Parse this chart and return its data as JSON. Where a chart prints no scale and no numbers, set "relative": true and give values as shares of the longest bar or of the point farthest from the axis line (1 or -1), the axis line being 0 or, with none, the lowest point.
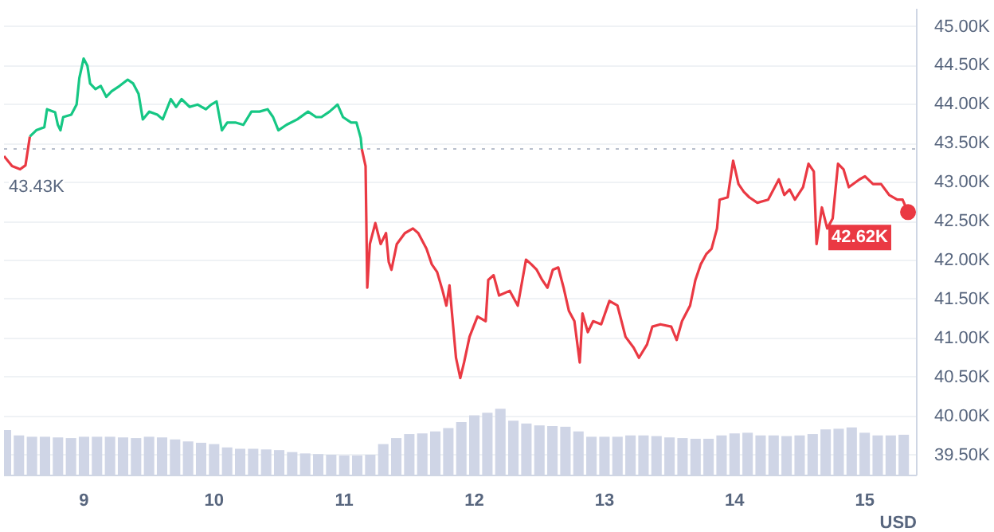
{
  "chart_data": [
    {
      "type": "line",
      "xlim": [
        8.385,
        15.4
      ],
      "ylim": [
        39.24,
        45.23
      ],
      "xticks": [
        9,
        10,
        11,
        12,
        13,
        14,
        15
      ],
      "yticks": [
        {
          "value": 39.5,
          "label": "39.50K"
        },
        {
          "value": 40,
          "label": "40.00K"
        },
        {
          "value": 40.5,
          "label": "40.50K"
        },
        {
          "value": 41,
          "label": "41.00K"
        },
        {
          "value": 41.5,
          "label": "41.50K"
        },
        {
          "value": 42,
          "label": "42.00K"
        },
        {
          "value": 42.5,
          "label": "42.50K"
        },
        {
          "value": 43,
          "label": "43.00K"
        },
        {
          "value": 43.5,
          "label": "43.50K"
        },
        {
          "value": 44,
          "label": "44.00K"
        },
        {
          "value": 44.5,
          "label": "44.50K"
        },
        {
          "value": 45,
          "label": "45.00K"
        }
      ],
      "grid": "y",
      "ref_lines": [
        {
          "axis": "y",
          "value": 43.43,
          "label": "43.43K",
          "line_style": "dotted",
          "color": "#b8bfcc"
        }
      ],
      "annotations": [
        {
          "text": "42.62K",
          "x": 15.333,
          "y": 42.62
        },
        "USD"
      ],
      "series": [
        {
          "color": "#ea3943",
          "x": [
            8.385,
            8.447,
            8.509,
            8.55,
            8.584
          ],
          "values": [
            43.34,
            43.21,
            43.17,
            43.22,
            43.59
          ]
        },
        {
          "color": "#16c784",
          "x": [
            8.584,
            8.633,
            8.695,
            8.716,
            8.778,
            8.799,
            8.819,
            8.84,
            8.902,
            8.943,
            8.964,
            8.997,
            9.026,
            9.047,
            9.088,
            9.129,
            9.171,
            9.212,
            9.274,
            9.336,
            9.378,
            9.419,
            9.452,
            9.502,
            9.564,
            9.605,
            9.667,
            9.708,
            9.75,
            9.812,
            9.874,
            9.936,
            9.977,
            10.019,
            10.06,
            10.101,
            10.163,
            10.225,
            10.287,
            10.349,
            10.411,
            10.453,
            10.494,
            10.556,
            10.639,
            10.722,
            10.784,
            10.825,
            10.887,
            10.949,
            10.99,
            11.053,
            11.094,
            11.127,
            11.135
          ],
          "values": [
            43.59,
            43.67,
            43.71,
            43.94,
            43.9,
            43.74,
            43.67,
            43.84,
            43.87,
            44.0,
            44.34,
            44.59,
            44.5,
            44.27,
            44.2,
            44.24,
            44.1,
            44.17,
            44.24,
            44.32,
            44.27,
            44.14,
            43.81,
            43.91,
            43.87,
            43.81,
            44.07,
            43.97,
            44.07,
            43.97,
            44.0,
            43.94,
            44.0,
            44.04,
            43.67,
            43.77,
            43.77,
            43.74,
            43.91,
            43.91,
            43.94,
            43.84,
            43.67,
            43.74,
            43.81,
            43.91,
            43.84,
            43.84,
            43.91,
            44.0,
            43.84,
            43.77,
            43.77,
            43.57,
            43.43
          ]
        },
        {
          "color": "#ea3943",
          "x": [
            11.135,
            11.164,
            11.177,
            11.197,
            11.239,
            11.28,
            11.321,
            11.342,
            11.363,
            11.404,
            11.466,
            11.528,
            11.569,
            11.632,
            11.673,
            11.714,
            11.756,
            11.785,
            11.809,
            11.859,
            11.892,
            11.921,
            11.963,
            12.024,
            12.087,
            12.107,
            12.148,
            12.19,
            12.272,
            12.334,
            12.397,
            12.438,
            12.479,
            12.521,
            12.562,
            12.603,
            12.645,
            12.686,
            12.727,
            12.769,
            12.81,
            12.831,
            12.872,
            12.913,
            12.975,
            13.038,
            13.1,
            13.162,
            13.224,
            13.265,
            13.327,
            13.368,
            13.43,
            13.513,
            13.555,
            13.596,
            13.658,
            13.699,
            13.74,
            13.782,
            13.823,
            13.865,
            13.885,
            13.947,
            13.989,
            14.03,
            14.071,
            14.113,
            14.175,
            14.258,
            14.34,
            14.382,
            14.423,
            14.464,
            14.526,
            14.568,
            14.609,
            14.63,
            14.671,
            14.712,
            14.754,
            14.795,
            14.837,
            14.878,
            14.96,
            15.002,
            15.064,
            15.126,
            15.188,
            15.25,
            15.291,
            15.333
          ],
          "values": [
            43.43,
            43.21,
            41.65,
            42.21,
            42.48,
            42.21,
            42.35,
            41.98,
            41.88,
            42.21,
            42.35,
            42.41,
            42.35,
            42.15,
            41.95,
            41.85,
            41.61,
            41.42,
            41.68,
            40.75,
            40.49,
            40.69,
            41.02,
            41.28,
            41.22,
            41.75,
            41.81,
            41.55,
            41.61,
            41.42,
            42.01,
            41.95,
            41.88,
            41.75,
            41.65,
            41.88,
            41.91,
            41.65,
            41.35,
            41.22,
            40.69,
            41.32,
            41.08,
            41.22,
            41.18,
            41.48,
            41.42,
            41.02,
            40.88,
            40.75,
            40.92,
            41.15,
            41.18,
            41.15,
            40.98,
            41.22,
            41.42,
            41.75,
            41.95,
            42.08,
            42.15,
            42.41,
            42.78,
            42.81,
            43.28,
            42.98,
            42.88,
            42.81,
            42.74,
            42.78,
            43.04,
            42.84,
            42.91,
            42.78,
            42.94,
            43.24,
            43.14,
            42.21,
            42.68,
            42.41,
            42.54,
            43.24,
            43.17,
            42.94,
            43.04,
            43.08,
            42.98,
            42.98,
            42.84,
            42.78,
            42.78,
            42.62
          ]
        }
      ]
    },
    {
      "type": "bar",
      "relative": true,
      "color": "#cfd5e6",
      "xlim": [
        8.385,
        15.4
      ],
      "x": [
        8.4,
        8.5,
        8.6,
        8.7,
        8.8,
        8.9,
        9.0,
        9.1,
        9.2,
        9.3,
        9.4,
        9.5,
        9.6,
        9.7,
        9.8,
        9.9,
        10.0,
        10.1,
        10.2,
        10.3,
        10.4,
        10.5,
        10.6,
        10.7,
        10.8,
        10.9,
        11.0,
        11.1,
        11.2,
        11.3,
        11.4,
        11.5,
        11.6,
        11.7,
        11.8,
        11.9,
        12.0,
        12.1,
        12.2,
        12.3,
        12.4,
        12.5,
        12.6,
        12.7,
        12.8,
        12.9,
        13.0,
        13.1,
        13.2,
        13.3,
        13.4,
        13.5,
        13.6,
        13.7,
        13.8,
        13.9,
        14.0,
        14.1,
        14.2,
        14.3,
        14.4,
        14.5,
        14.6,
        14.7,
        14.8,
        14.9,
        15.0,
        15.1,
        15.2,
        15.3
      ],
      "values": [
        0.68,
        0.6,
        0.58,
        0.58,
        0.57,
        0.56,
        0.58,
        0.58,
        0.58,
        0.57,
        0.56,
        0.58,
        0.57,
        0.54,
        0.51,
        0.49,
        0.47,
        0.42,
        0.4,
        0.4,
        0.39,
        0.38,
        0.35,
        0.33,
        0.32,
        0.31,
        0.3,
        0.3,
        0.31,
        0.47,
        0.56,
        0.62,
        0.63,
        0.66,
        0.71,
        0.8,
        0.9,
        0.94,
        1,
        0.82,
        0.78,
        0.75,
        0.74,
        0.73,
        0.66,
        0.58,
        0.58,
        0.58,
        0.6,
        0.6,
        0.59,
        0.57,
        0.56,
        0.55,
        0.55,
        0.6,
        0.63,
        0.64,
        0.6,
        0.6,
        0.59,
        0.6,
        0.62,
        0.69,
        0.7,
        0.72,
        0.64,
        0.6,
        0.6,
        0.61
      ]
    }
  ]
}
